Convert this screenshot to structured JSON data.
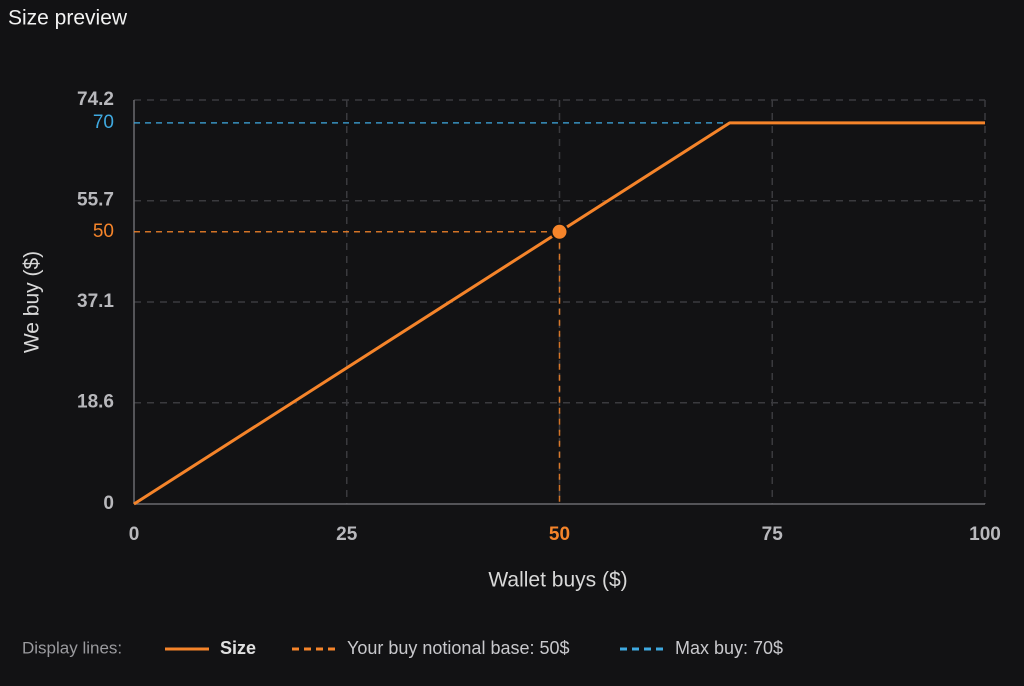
{
  "chart_data": {
    "type": "line",
    "title": "Size preview",
    "x_label": "Wallet buys ($)",
    "y_label": "We buy ($)",
    "xlim": [
      0,
      100
    ],
    "ylim": [
      0,
      74.2
    ],
    "xticks": [
      0,
      25,
      50,
      75,
      100
    ],
    "yticks": [
      0,
      18.6,
      37.1,
      55.7,
      74.2
    ],
    "grid": true,
    "series": [
      {
        "name": "Size",
        "color": "#f5842a",
        "x": [
          0,
          70,
          100
        ],
        "values": [
          0,
          70,
          70
        ]
      }
    ],
    "reference_lines": [
      {
        "name": "Your buy notional base: 50$",
        "color": "#f5842a",
        "x": 50,
        "y": 50
      },
      {
        "name": "Max buy: 70$",
        "color": "#3fa9e0",
        "y": 70
      }
    ],
    "legend": {
      "title": "Display lines:",
      "position": "bottom-left"
    }
  }
}
